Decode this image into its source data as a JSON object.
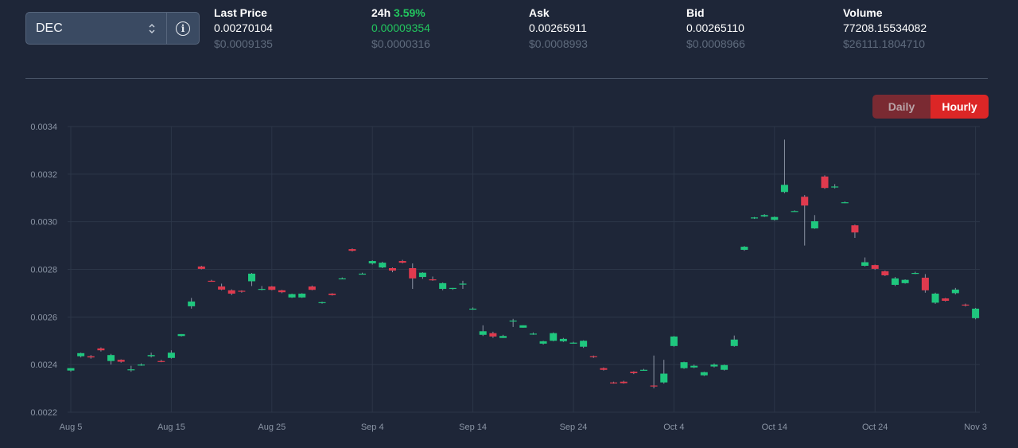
{
  "selector": {
    "value": "DEC"
  },
  "stats": [
    {
      "label": "Last Price",
      "value": "0.00270104",
      "usd": "$0.0009135"
    },
    {
      "label": "24h",
      "pct": "3.59%",
      "value": "0.00009354",
      "usd": "$0.0000316"
    },
    {
      "label": "Ask",
      "value": "0.00265911",
      "usd": "$0.0008993"
    },
    {
      "label": "Bid",
      "value": "0.00265110",
      "usd": "$0.0008966"
    },
    {
      "label": "Volume",
      "value": "77208.15534082",
      "usd": "$26111.1804710"
    }
  ],
  "toggle": {
    "daily": "Daily",
    "hourly": "Hourly",
    "active": "Hourly"
  },
  "colors": {
    "up": "#1fc77e",
    "down": "#e03a4e",
    "accent": "#dc2626",
    "grid": "#2c3648"
  },
  "chart_data": {
    "type": "candlestick",
    "title": "",
    "xlabel": "",
    "ylabel": "",
    "ylim": [
      0.0022,
      0.0034
    ],
    "yticks": [
      "0.0022",
      "0.0024",
      "0.0026",
      "0.0028",
      "0.0030",
      "0.0032",
      "0.0034"
    ],
    "xticks": [
      "Aug 5",
      "Aug 15",
      "Aug 25",
      "Sep 4",
      "Sep 14",
      "Sep 24",
      "Oct 4",
      "Oct 14",
      "Oct 24",
      "Nov 3"
    ],
    "grid": true,
    "candles": [
      {
        "date": "Aug 5",
        "open": 0.002375,
        "high": 0.002385,
        "low": 0.00237,
        "close": 0.002385
      },
      {
        "date": "Aug 6",
        "open": 0.002435,
        "high": 0.00245,
        "low": 0.00243,
        "close": 0.002448
      },
      {
        "date": "Aug 7",
        "open": 0.002435,
        "high": 0.00244,
        "low": 0.002425,
        "close": 0.00243
      },
      {
        "date": "Aug 8",
        "open": 0.002468,
        "high": 0.002472,
        "low": 0.002455,
        "close": 0.00246
      },
      {
        "date": "Aug 9",
        "open": 0.002415,
        "high": 0.002445,
        "low": 0.0024,
        "close": 0.00244
      },
      {
        "date": "Aug 10",
        "open": 0.00242,
        "high": 0.002422,
        "low": 0.002408,
        "close": 0.002412
      },
      {
        "date": "Aug 11",
        "open": 0.00238,
        "high": 0.002395,
        "low": 0.00237,
        "close": 0.00238
      },
      {
        "date": "Aug 12",
        "open": 0.0024,
        "high": 0.002405,
        "low": 0.002395,
        "close": 0.0024
      },
      {
        "date": "Aug 13",
        "open": 0.002435,
        "high": 0.00245,
        "low": 0.00243,
        "close": 0.00244
      },
      {
        "date": "Aug 14",
        "open": 0.002415,
        "high": 0.00242,
        "low": 0.00241,
        "close": 0.002412
      },
      {
        "date": "Aug 15",
        "open": 0.002428,
        "high": 0.00246,
        "low": 0.002425,
        "close": 0.00245
      },
      {
        "date": "Aug 16",
        "open": 0.00252,
        "high": 0.002528,
        "low": 0.002518,
        "close": 0.002528
      },
      {
        "date": "Aug 17",
        "open": 0.002645,
        "high": 0.00268,
        "low": 0.002635,
        "close": 0.002665
      },
      {
        "date": "Aug 18",
        "open": 0.002812,
        "high": 0.002815,
        "low": 0.0028,
        "close": 0.002802
      },
      {
        "date": "Aug 19",
        "open": 0.002752,
        "high": 0.002756,
        "low": 0.002748,
        "close": 0.00275
      },
      {
        "date": "Aug 20",
        "open": 0.002728,
        "high": 0.00274,
        "low": 0.002712,
        "close": 0.002715
      },
      {
        "date": "Aug 21",
        "open": 0.002712,
        "high": 0.002716,
        "low": 0.002692,
        "close": 0.002698
      },
      {
        "date": "Aug 22",
        "open": 0.00271,
        "high": 0.002712,
        "low": 0.002702,
        "close": 0.002708
      },
      {
        "date": "Aug 23",
        "open": 0.00275,
        "high": 0.002785,
        "low": 0.00273,
        "close": 0.002782
      },
      {
        "date": "Aug 24",
        "open": 0.002718,
        "high": 0.00273,
        "low": 0.002712,
        "close": 0.002718
      },
      {
        "date": "Aug 25",
        "open": 0.002728,
        "high": 0.00273,
        "low": 0.002712,
        "close": 0.002714
      },
      {
        "date": "Aug 26",
        "open": 0.002712,
        "high": 0.002714,
        "low": 0.0027,
        "close": 0.002704
      },
      {
        "date": "Aug 27",
        "open": 0.002682,
        "high": 0.002698,
        "low": 0.00268,
        "close": 0.002696
      },
      {
        "date": "Aug 28",
        "open": 0.002682,
        "high": 0.0027,
        "low": 0.00268,
        "close": 0.002698
      },
      {
        "date": "Aug 29",
        "open": 0.002728,
        "high": 0.002732,
        "low": 0.002712,
        "close": 0.002714
      },
      {
        "date": "Aug 30",
        "open": 0.00266,
        "high": 0.002664,
        "low": 0.002656,
        "close": 0.002662
      },
      {
        "date": "Aug 31",
        "open": 0.002698,
        "high": 0.0027,
        "low": 0.00269,
        "close": 0.002692
      },
      {
        "date": "Sep 1",
        "open": 0.002762,
        "high": 0.002766,
        "low": 0.00276,
        "close": 0.002762
      },
      {
        "date": "Sep 2",
        "open": 0.002885,
        "high": 0.002888,
        "low": 0.002875,
        "close": 0.002878
      },
      {
        "date": "Sep 3",
        "open": 0.002782,
        "high": 0.002786,
        "low": 0.002778,
        "close": 0.002782
      },
      {
        "date": "Sep 4",
        "open": 0.002825,
        "high": 0.002838,
        "low": 0.00282,
        "close": 0.002835
      },
      {
        "date": "Sep 5",
        "open": 0.002808,
        "high": 0.002832,
        "low": 0.002805,
        "close": 0.002828
      },
      {
        "date": "Sep 6",
        "open": 0.002805,
        "high": 0.002808,
        "low": 0.002788,
        "close": 0.002795
      },
      {
        "date": "Sep 7",
        "open": 0.002835,
        "high": 0.00284,
        "low": 0.002825,
        "close": 0.002828
      },
      {
        "date": "Sep 8",
        "open": 0.002805,
        "high": 0.002825,
        "low": 0.002718,
        "close": 0.002762
      },
      {
        "date": "Sep 9",
        "open": 0.002768,
        "high": 0.002788,
        "low": 0.00276,
        "close": 0.002786
      },
      {
        "date": "Sep 10",
        "open": 0.002758,
        "high": 0.00277,
        "low": 0.002752,
        "close": 0.002756
      },
      {
        "date": "Sep 11",
        "open": 0.002718,
        "high": 0.002745,
        "low": 0.002712,
        "close": 0.002742
      },
      {
        "date": "Sep 12",
        "open": 0.002718,
        "high": 0.002722,
        "low": 0.002714,
        "close": 0.002722
      },
      {
        "date": "Sep 13",
        "open": 0.00274,
        "high": 0.002752,
        "low": 0.002718,
        "close": 0.00274
      },
      {
        "date": "Sep 14",
        "open": 0.002635,
        "high": 0.00264,
        "low": 0.00263,
        "close": 0.002635
      },
      {
        "date": "Sep 15",
        "open": 0.002525,
        "high": 0.002565,
        "low": 0.00252,
        "close": 0.00254
      },
      {
        "date": "Sep 16",
        "open": 0.002532,
        "high": 0.002538,
        "low": 0.002512,
        "close": 0.002518
      },
      {
        "date": "Sep 17",
        "open": 0.002512,
        "high": 0.002525,
        "low": 0.002512,
        "close": 0.00252
      },
      {
        "date": "Sep 18",
        "open": 0.002582,
        "high": 0.002592,
        "low": 0.002558,
        "close": 0.002585
      },
      {
        "date": "Sep 19",
        "open": 0.002555,
        "high": 0.002565,
        "low": 0.002555,
        "close": 0.002565
      },
      {
        "date": "Sep 20",
        "open": 0.00253,
        "high": 0.002535,
        "low": 0.002525,
        "close": 0.00253
      },
      {
        "date": "Sep 21",
        "open": 0.002488,
        "high": 0.0025,
        "low": 0.002484,
        "close": 0.002498
      },
      {
        "date": "Sep 22",
        "open": 0.0025,
        "high": 0.002535,
        "low": 0.002498,
        "close": 0.002532
      },
      {
        "date": "Sep 23",
        "open": 0.002498,
        "high": 0.002512,
        "low": 0.002495,
        "close": 0.002508
      },
      {
        "date": "Sep 24",
        "open": 0.002492,
        "high": 0.002496,
        "low": 0.002488,
        "close": 0.002492
      },
      {
        "date": "Sep 25",
        "open": 0.002475,
        "high": 0.002502,
        "low": 0.00247,
        "close": 0.0025
      },
      {
        "date": "Sep 26",
        "open": 0.002435,
        "high": 0.002438,
        "low": 0.002428,
        "close": 0.002432
      },
      {
        "date": "Sep 27",
        "open": 0.002385,
        "high": 0.002388,
        "low": 0.002375,
        "close": 0.002378
      },
      {
        "date": "Sep 28",
        "open": 0.002325,
        "high": 0.002328,
        "low": 0.00232,
        "close": 0.002324
      },
      {
        "date": "Sep 29",
        "open": 0.002328,
        "high": 0.002332,
        "low": 0.00232,
        "close": 0.002322
      },
      {
        "date": "Sep 30",
        "open": 0.00237,
        "high": 0.002372,
        "low": 0.00236,
        "close": 0.002364
      },
      {
        "date": "Oct 1",
        "open": 0.002378,
        "high": 0.002382,
        "low": 0.002374,
        "close": 0.002378
      },
      {
        "date": "Oct 2",
        "open": 0.002312,
        "high": 0.002438,
        "low": 0.0023,
        "close": 0.002308
      },
      {
        "date": "Oct 3",
        "open": 0.002325,
        "high": 0.00242,
        "low": 0.00232,
        "close": 0.002362
      },
      {
        "date": "Oct 4",
        "open": 0.002478,
        "high": 0.00252,
        "low": 0.002475,
        "close": 0.002518
      },
      {
        "date": "Oct 5",
        "open": 0.002385,
        "high": 0.002412,
        "low": 0.002382,
        "close": 0.00241
      },
      {
        "date": "Oct 6",
        "open": 0.002388,
        "high": 0.0024,
        "low": 0.002385,
        "close": 0.002395
      },
      {
        "date": "Oct 7",
        "open": 0.002355,
        "high": 0.00237,
        "low": 0.002352,
        "close": 0.002368
      },
      {
        "date": "Oct 8",
        "open": 0.002392,
        "high": 0.002405,
        "low": 0.002388,
        "close": 0.0024
      },
      {
        "date": "Oct 9",
        "open": 0.002378,
        "high": 0.0024,
        "low": 0.002375,
        "close": 0.002398
      },
      {
        "date": "Oct 10",
        "open": 0.002478,
        "high": 0.002522,
        "low": 0.002475,
        "close": 0.002505
      },
      {
        "date": "Oct 11",
        "open": 0.002882,
        "high": 0.002898,
        "low": 0.002878,
        "close": 0.002895
      },
      {
        "date": "Oct 12",
        "open": 0.003015,
        "high": 0.00302,
        "low": 0.003012,
        "close": 0.003018
      },
      {
        "date": "Oct 13",
        "open": 0.003022,
        "high": 0.003032,
        "low": 0.00302,
        "close": 0.003028
      },
      {
        "date": "Oct 14",
        "open": 0.003008,
        "high": 0.003022,
        "low": 0.003005,
        "close": 0.00302
      },
      {
        "date": "Oct 15",
        "open": 0.003125,
        "high": 0.003345,
        "low": 0.00312,
        "close": 0.003155
      },
      {
        "date": "Oct 16",
        "open": 0.003045,
        "high": 0.003048,
        "low": 0.003042,
        "close": 0.003045
      },
      {
        "date": "Oct 17",
        "open": 0.003105,
        "high": 0.003112,
        "low": 0.0029,
        "close": 0.003068
      },
      {
        "date": "Oct 18",
        "open": 0.002972,
        "high": 0.003028,
        "low": 0.00297,
        "close": 0.003002
      },
      {
        "date": "Oct 19",
        "open": 0.00319,
        "high": 0.003195,
        "low": 0.003138,
        "close": 0.003142
      },
      {
        "date": "Oct 20",
        "open": 0.003148,
        "high": 0.003158,
        "low": 0.00314,
        "close": 0.003148
      },
      {
        "date": "Oct 21",
        "open": 0.003082,
        "high": 0.003085,
        "low": 0.003078,
        "close": 0.003082
      },
      {
        "date": "Oct 22",
        "open": 0.002985,
        "high": 0.002988,
        "low": 0.002932,
        "close": 0.002955
      },
      {
        "date": "Oct 23",
        "open": 0.002815,
        "high": 0.00285,
        "low": 0.002812,
        "close": 0.00283
      },
      {
        "date": "Oct 24",
        "open": 0.002818,
        "high": 0.00282,
        "low": 0.002798,
        "close": 0.002802
      },
      {
        "date": "Oct 25",
        "open": 0.002792,
        "high": 0.002795,
        "low": 0.002772,
        "close": 0.002775
      },
      {
        "date": "Oct 26",
        "open": 0.002735,
        "high": 0.002768,
        "low": 0.00273,
        "close": 0.002762
      },
      {
        "date": "Oct 27",
        "open": 0.002742,
        "high": 0.002758,
        "low": 0.00274,
        "close": 0.002756
      },
      {
        "date": "Oct 28",
        "open": 0.002785,
        "high": 0.00279,
        "low": 0.00278,
        "close": 0.002785
      },
      {
        "date": "Oct 29",
        "open": 0.002765,
        "high": 0.00278,
        "low": 0.002702,
        "close": 0.002712
      },
      {
        "date": "Oct 30",
        "open": 0.00266,
        "high": 0.002702,
        "low": 0.002655,
        "close": 0.002698
      },
      {
        "date": "Oct 31",
        "open": 0.002678,
        "high": 0.00268,
        "low": 0.002665,
        "close": 0.002668
      },
      {
        "date": "Nov 1",
        "open": 0.0027,
        "high": 0.002722,
        "low": 0.002695,
        "close": 0.002715
      },
      {
        "date": "Nov 2",
        "open": 0.002652,
        "high": 0.002656,
        "low": 0.002644,
        "close": 0.00265
      },
      {
        "date": "Nov 3",
        "open": 0.002595,
        "high": 0.002638,
        "low": 0.00259,
        "close": 0.002635
      }
    ]
  }
}
